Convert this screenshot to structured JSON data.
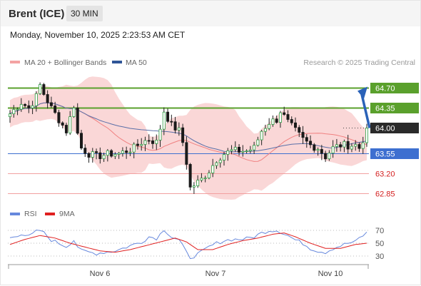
{
  "header": {
    "instrument": "Brent (ICE)",
    "timeframe": "30 MIN"
  },
  "timestamp": "Monday, November 10, 2025 2:23:53 AM CET",
  "credit": "Research © 2025 Trading Central",
  "colors": {
    "bollinger_fill": "#f9d0d0",
    "ma20": "#f08080",
    "ma50": "#5a6fa8",
    "resistance": "#5aa02c",
    "support_line": "#f2a0a0",
    "pivot_line": "#3d6fd0",
    "candle_up": "#2f9e44",
    "candle_down": "#1a1a1a",
    "arrow": "#2a62b8",
    "rsi": "#6688dd",
    "rsi_ma": "#e02020"
  },
  "chart_data": [
    {
      "type": "candlestick",
      "title": "",
      "legend": [
        {
          "name": "MA 20 + Bollinger Bands",
          "color": "#f08080"
        },
        {
          "name": "MA 50",
          "color": "#2f5597"
        }
      ],
      "legend_position": "top-left",
      "x_ticks": [
        "Nov 6",
        "Nov 7",
        "Nov 10"
      ],
      "ylim": [
        62.6,
        65.2
      ],
      "levels": [
        {
          "value": 64.7,
          "label": "64.70",
          "kind": "resistance"
        },
        {
          "value": 64.35,
          "label": "64.35",
          "kind": "resistance"
        },
        {
          "value": 64.0,
          "label": "64.00",
          "kind": "current"
        },
        {
          "value": 63.55,
          "label": "63.55",
          "kind": "pivot"
        },
        {
          "value": 63.2,
          "label": "63.20",
          "kind": "support"
        },
        {
          "value": 62.85,
          "label": "62.85",
          "kind": "support"
        }
      ],
      "price_path": [
        [
          0,
          64.25
        ],
        [
          3,
          64.45
        ],
        [
          5,
          64.35
        ],
        [
          7,
          64.55
        ],
        [
          8,
          64.75
        ],
        [
          9,
          64.6
        ],
        [
          11,
          64.35
        ],
        [
          13,
          64.15
        ],
        [
          15,
          63.95
        ],
        [
          17,
          64.4
        ],
        [
          18,
          63.9
        ],
        [
          19,
          63.65
        ],
        [
          21,
          63.55
        ],
        [
          23,
          63.5
        ],
        [
          25,
          63.53
        ],
        [
          27,
          63.55
        ],
        [
          29,
          63.55
        ],
        [
          31,
          63.6
        ],
        [
          33,
          63.65
        ],
        [
          35,
          63.75
        ],
        [
          37,
          63.8
        ],
        [
          39,
          63.75
        ],
        [
          40,
          64.0
        ],
        [
          41,
          64.3
        ],
        [
          43,
          64.05
        ],
        [
          45,
          63.95
        ],
        [
          46,
          63.75
        ],
        [
          47,
          63.4
        ],
        [
          48,
          62.95
        ],
        [
          49,
          63.0
        ],
        [
          51,
          63.1
        ],
        [
          53,
          63.25
        ],
        [
          55,
          63.45
        ],
        [
          57,
          63.55
        ],
        [
          59,
          63.6
        ],
        [
          61,
          63.6
        ],
        [
          63,
          63.6
        ],
        [
          65,
          63.65
        ],
        [
          67,
          63.95
        ],
        [
          69,
          64.1
        ],
        [
          71,
          64.15
        ],
        [
          72,
          64.3
        ],
        [
          74,
          64.1
        ],
        [
          76,
          63.95
        ],
        [
          78,
          63.8
        ],
        [
          80,
          63.7
        ],
        [
          82,
          63.65
        ],
        [
          84,
          63.5
        ],
        [
          86,
          63.65
        ],
        [
          88,
          63.7
        ],
        [
          90,
          63.7
        ],
        [
          92,
          63.7
        ],
        [
          93,
          63.65
        ],
        [
          94,
          63.8
        ],
        [
          95,
          64.0
        ]
      ],
      "forecast_arrow": {
        "from": 64.0,
        "to": 64.7
      }
    },
    {
      "type": "line",
      "title": "",
      "legend": [
        {
          "name": "RSI",
          "color": "#6688dd"
        },
        {
          "name": "9MA",
          "color": "#e02020"
        }
      ],
      "legend_position": "top-left",
      "y_ticks": [
        70,
        50,
        30
      ],
      "ylim": [
        20,
        80
      ],
      "series": [
        {
          "name": "RSI",
          "points": [
            [
              0,
              58
            ],
            [
              3,
              65
            ],
            [
              5,
              60
            ],
            [
              7,
              68
            ],
            [
              8,
              70
            ],
            [
              9,
              66
            ],
            [
              11,
              55
            ],
            [
              13,
              50
            ],
            [
              15,
              45
            ],
            [
              17,
              55
            ],
            [
              18,
              45
            ],
            [
              19,
              38
            ],
            [
              21,
              36
            ],
            [
              23,
              34
            ],
            [
              25,
              36
            ],
            [
              27,
              37
            ],
            [
              29,
              40
            ],
            [
              31,
              44
            ],
            [
              33,
              48
            ],
            [
              35,
              52
            ],
            [
              37,
              60
            ],
            [
              39,
              58
            ],
            [
              40,
              64
            ],
            [
              41,
              72
            ],
            [
              43,
              60
            ],
            [
              45,
              55
            ],
            [
              46,
              45
            ],
            [
              47,
              35
            ],
            [
              48,
              28
            ],
            [
              49,
              30
            ],
            [
              51,
              36
            ],
            [
              53,
              44
            ],
            [
              55,
              50
            ],
            [
              57,
              54
            ],
            [
              59,
              56
            ],
            [
              61,
              56
            ],
            [
              63,
              57
            ],
            [
              65,
              60
            ],
            [
              67,
              66
            ],
            [
              69,
              70
            ],
            [
              71,
              70
            ],
            [
              72,
              68
            ],
            [
              74,
              62
            ],
            [
              76,
              55
            ],
            [
              78,
              50
            ],
            [
              80,
              42
            ],
            [
              82,
              38
            ],
            [
              84,
              36
            ],
            [
              86,
              42
            ],
            [
              88,
              46
            ],
            [
              90,
              50
            ],
            [
              92,
              52
            ],
            [
              93,
              58
            ],
            [
              94,
              62
            ],
            [
              95,
              66
            ]
          ]
        },
        {
          "name": "9MA",
          "points": [
            [
              0,
              48
            ],
            [
              4,
              56
            ],
            [
              8,
              62
            ],
            [
              12,
              58
            ],
            [
              16,
              50
            ],
            [
              20,
              44
            ],
            [
              24,
              38
            ],
            [
              28,
              36
            ],
            [
              32,
              40
            ],
            [
              36,
              46
            ],
            [
              40,
              52
            ],
            [
              44,
              58
            ],
            [
              47,
              52
            ],
            [
              50,
              40
            ],
            [
              54,
              40
            ],
            [
              58,
              48
            ],
            [
              62,
              54
            ],
            [
              66,
              58
            ],
            [
              70,
              64
            ],
            [
              73,
              66
            ],
            [
              76,
              60
            ],
            [
              80,
              50
            ],
            [
              84,
              42
            ],
            [
              88,
              42
            ],
            [
              92,
              48
            ],
            [
              95,
              50
            ]
          ]
        }
      ]
    }
  ]
}
